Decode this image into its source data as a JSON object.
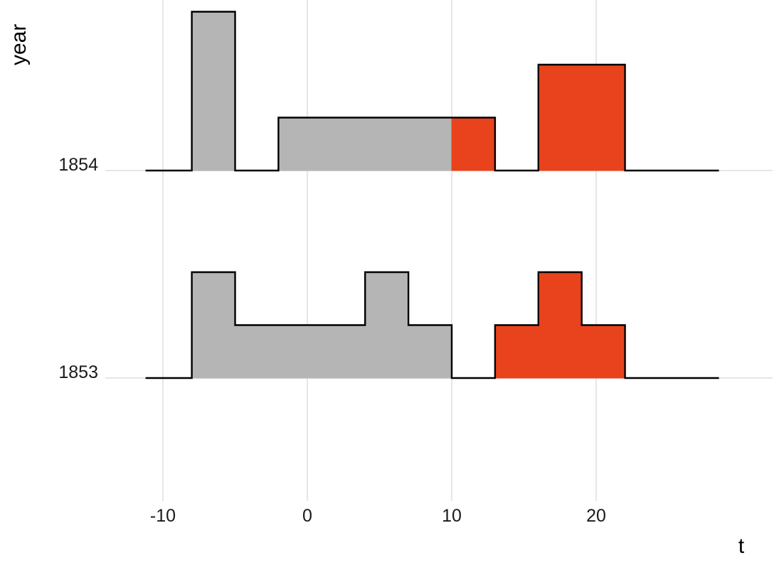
{
  "chart_data": {
    "type": "area",
    "style": "step-ridgeline",
    "title": "",
    "xlabel": "t",
    "ylabel": "year",
    "xlim": [
      -11.2,
      28.5
    ],
    "grid": "on",
    "x_ticks": [
      {
        "value": -10,
        "label": "-10"
      },
      {
        "value": 0,
        "label": "0"
      },
      {
        "value": 10,
        "label": "10"
      },
      {
        "value": 20,
        "label": "20"
      }
    ],
    "rows": [
      {
        "label": "1854",
        "segments": [
          {
            "start": -8,
            "end": -5,
            "height": 3,
            "color": "gray"
          },
          {
            "start": -2,
            "end": 10,
            "height": 1,
            "color": "gray"
          },
          {
            "start": 10,
            "end": 13,
            "height": 1,
            "color": "red"
          },
          {
            "start": 16,
            "end": 22,
            "height": 2,
            "color": "red"
          }
        ]
      },
      {
        "label": "1853",
        "segments": [
          {
            "start": -8,
            "end": -5,
            "height": 2,
            "color": "gray"
          },
          {
            "start": -5,
            "end": 4,
            "height": 1,
            "color": "gray"
          },
          {
            "start": 4,
            "end": 7,
            "height": 2,
            "color": "gray"
          },
          {
            "start": 7,
            "end": 10,
            "height": 1,
            "color": "gray"
          },
          {
            "start": 13,
            "end": 16,
            "height": 1,
            "color": "red"
          },
          {
            "start": 16,
            "end": 19,
            "height": 2,
            "color": "red"
          },
          {
            "start": 19,
            "end": 22,
            "height": 1,
            "color": "red"
          }
        ]
      }
    ],
    "colors": {
      "gray": "#b5b5b5",
      "red": "#e8431c",
      "outline": "#000000",
      "grid": "#e6e6e6",
      "tick_text": "#1a1a1a",
      "title_text": "#000000",
      "background": "#ffffff"
    }
  }
}
